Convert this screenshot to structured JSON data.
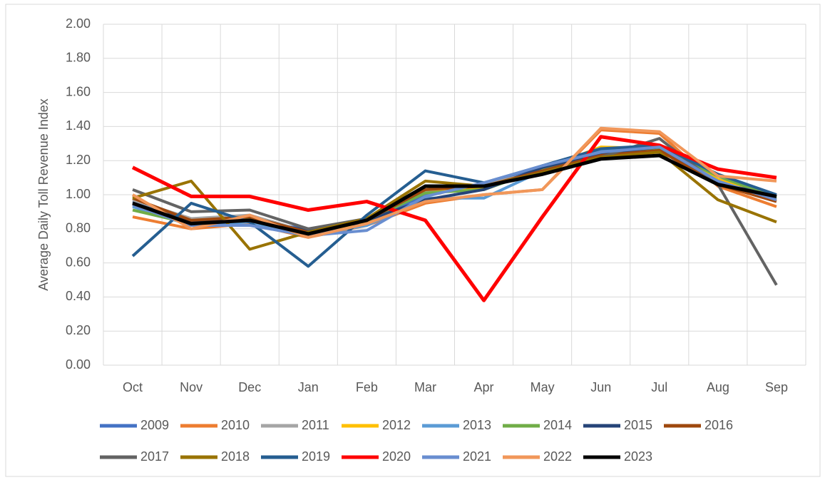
{
  "chart_data": {
    "type": "line",
    "y_label": "Average Daily Toll Revenue Index",
    "categories": [
      "Oct",
      "Nov",
      "Dec",
      "Jan",
      "Feb",
      "Mar",
      "Apr",
      "May",
      "Jun",
      "Jul",
      "Aug",
      "Sep"
    ],
    "ylim": [
      0,
      2
    ],
    "yticks": [
      {
        "value": 0,
        "label": "0.00"
      },
      {
        "value": 0.2,
        "label": "0.20"
      },
      {
        "value": 0.4,
        "label": "0.40"
      },
      {
        "value": 0.6,
        "label": "0.60"
      },
      {
        "value": 0.8,
        "label": "0.80"
      },
      {
        "value": 1,
        "label": "1.00"
      },
      {
        "value": 1.2,
        "label": "1.20"
      },
      {
        "value": 1.4,
        "label": "1.40"
      },
      {
        "value": 1.6,
        "label": "1.60"
      },
      {
        "value": 1.8,
        "label": "1.80"
      },
      {
        "value": 2,
        "label": "2.00"
      }
    ],
    "grid": true,
    "legend": "bottom",
    "series": [
      {
        "name": "2009",
        "color": "#4472c4",
        "values": [
          0.96,
          0.84,
          0.84,
          0.8,
          0.84,
          1.0,
          1.06,
          1.17,
          1.25,
          1.28,
          1.09,
          0.99
        ]
      },
      {
        "name": "2010",
        "color": "#ed7d31",
        "values": [
          0.87,
          0.8,
          0.83,
          0.75,
          0.82,
          0.95,
          1.0,
          1.03,
          1.38,
          1.36,
          1.05,
          0.93
        ]
      },
      {
        "name": "2011",
        "color": "#a5a5a5",
        "values": [
          0.97,
          0.86,
          0.88,
          0.78,
          0.85,
          1.02,
          1.06,
          1.14,
          1.24,
          1.27,
          1.08,
          0.98
        ]
      },
      {
        "name": "2012",
        "color": "#ffc000",
        "values": [
          0.95,
          0.84,
          0.86,
          0.77,
          0.84,
          1.03,
          1.04,
          1.15,
          1.28,
          1.27,
          1.09,
          0.97
        ]
      },
      {
        "name": "2013",
        "color": "#5b9bd5",
        "values": [
          0.93,
          0.82,
          0.84,
          0.76,
          0.82,
          0.98,
          0.98,
          1.14,
          1.26,
          1.26,
          1.07,
          0.97
        ]
      },
      {
        "name": "2014",
        "color": "#70ad47",
        "values": [
          0.91,
          0.83,
          0.86,
          0.78,
          0.85,
          1.01,
          1.03,
          1.15,
          1.23,
          1.27,
          1.11,
          0.98
        ]
      },
      {
        "name": "2015",
        "color": "#264478",
        "values": [
          0.95,
          0.84,
          0.85,
          0.79,
          0.85,
          0.97,
          1.03,
          1.16,
          1.24,
          1.28,
          1.07,
          0.99
        ]
      },
      {
        "name": "2016",
        "color": "#9e480e",
        "values": [
          0.98,
          0.85,
          0.87,
          0.78,
          0.85,
          1.03,
          1.05,
          1.14,
          1.23,
          1.26,
          1.06,
          0.96
        ]
      },
      {
        "name": "2017",
        "color": "#636363",
        "values": [
          1.03,
          0.9,
          0.91,
          0.8,
          0.86,
          1.05,
          1.05,
          1.13,
          1.22,
          1.33,
          1.06,
          0.47
        ]
      },
      {
        "name": "2018",
        "color": "#997300",
        "values": [
          0.98,
          1.08,
          0.68,
          0.78,
          0.86,
          1.08,
          1.05,
          1.13,
          1.22,
          1.25,
          0.97,
          0.84
        ]
      },
      {
        "name": "2019",
        "color": "#255e91",
        "values": [
          0.64,
          0.95,
          0.84,
          0.58,
          0.88,
          1.14,
          1.07,
          1.17,
          1.27,
          1.29,
          1.12,
          1.0
        ]
      },
      {
        "name": "2020",
        "color": "#ff0000",
        "values": [
          1.16,
          0.99,
          0.99,
          0.91,
          0.96,
          0.85,
          0.38,
          0.87,
          1.34,
          1.29,
          1.15,
          1.1
        ]
      },
      {
        "name": "2021",
        "color": "#698ed0",
        "values": [
          0.94,
          0.82,
          0.82,
          0.76,
          0.79,
          0.99,
          1.07,
          1.17,
          1.25,
          1.28,
          1.08,
          0.97
        ]
      },
      {
        "name": "2022",
        "color": "#f1975a",
        "values": [
          1.0,
          0.8,
          0.88,
          0.75,
          0.83,
          0.96,
          1.0,
          1.03,
          1.39,
          1.37,
          1.11,
          1.08
        ]
      },
      {
        "name": "2023",
        "color": "#000000",
        "values": [
          0.95,
          0.83,
          0.85,
          0.77,
          0.85,
          1.05,
          1.05,
          1.12,
          1.21,
          1.23,
          1.06,
          0.99
        ]
      }
    ]
  }
}
